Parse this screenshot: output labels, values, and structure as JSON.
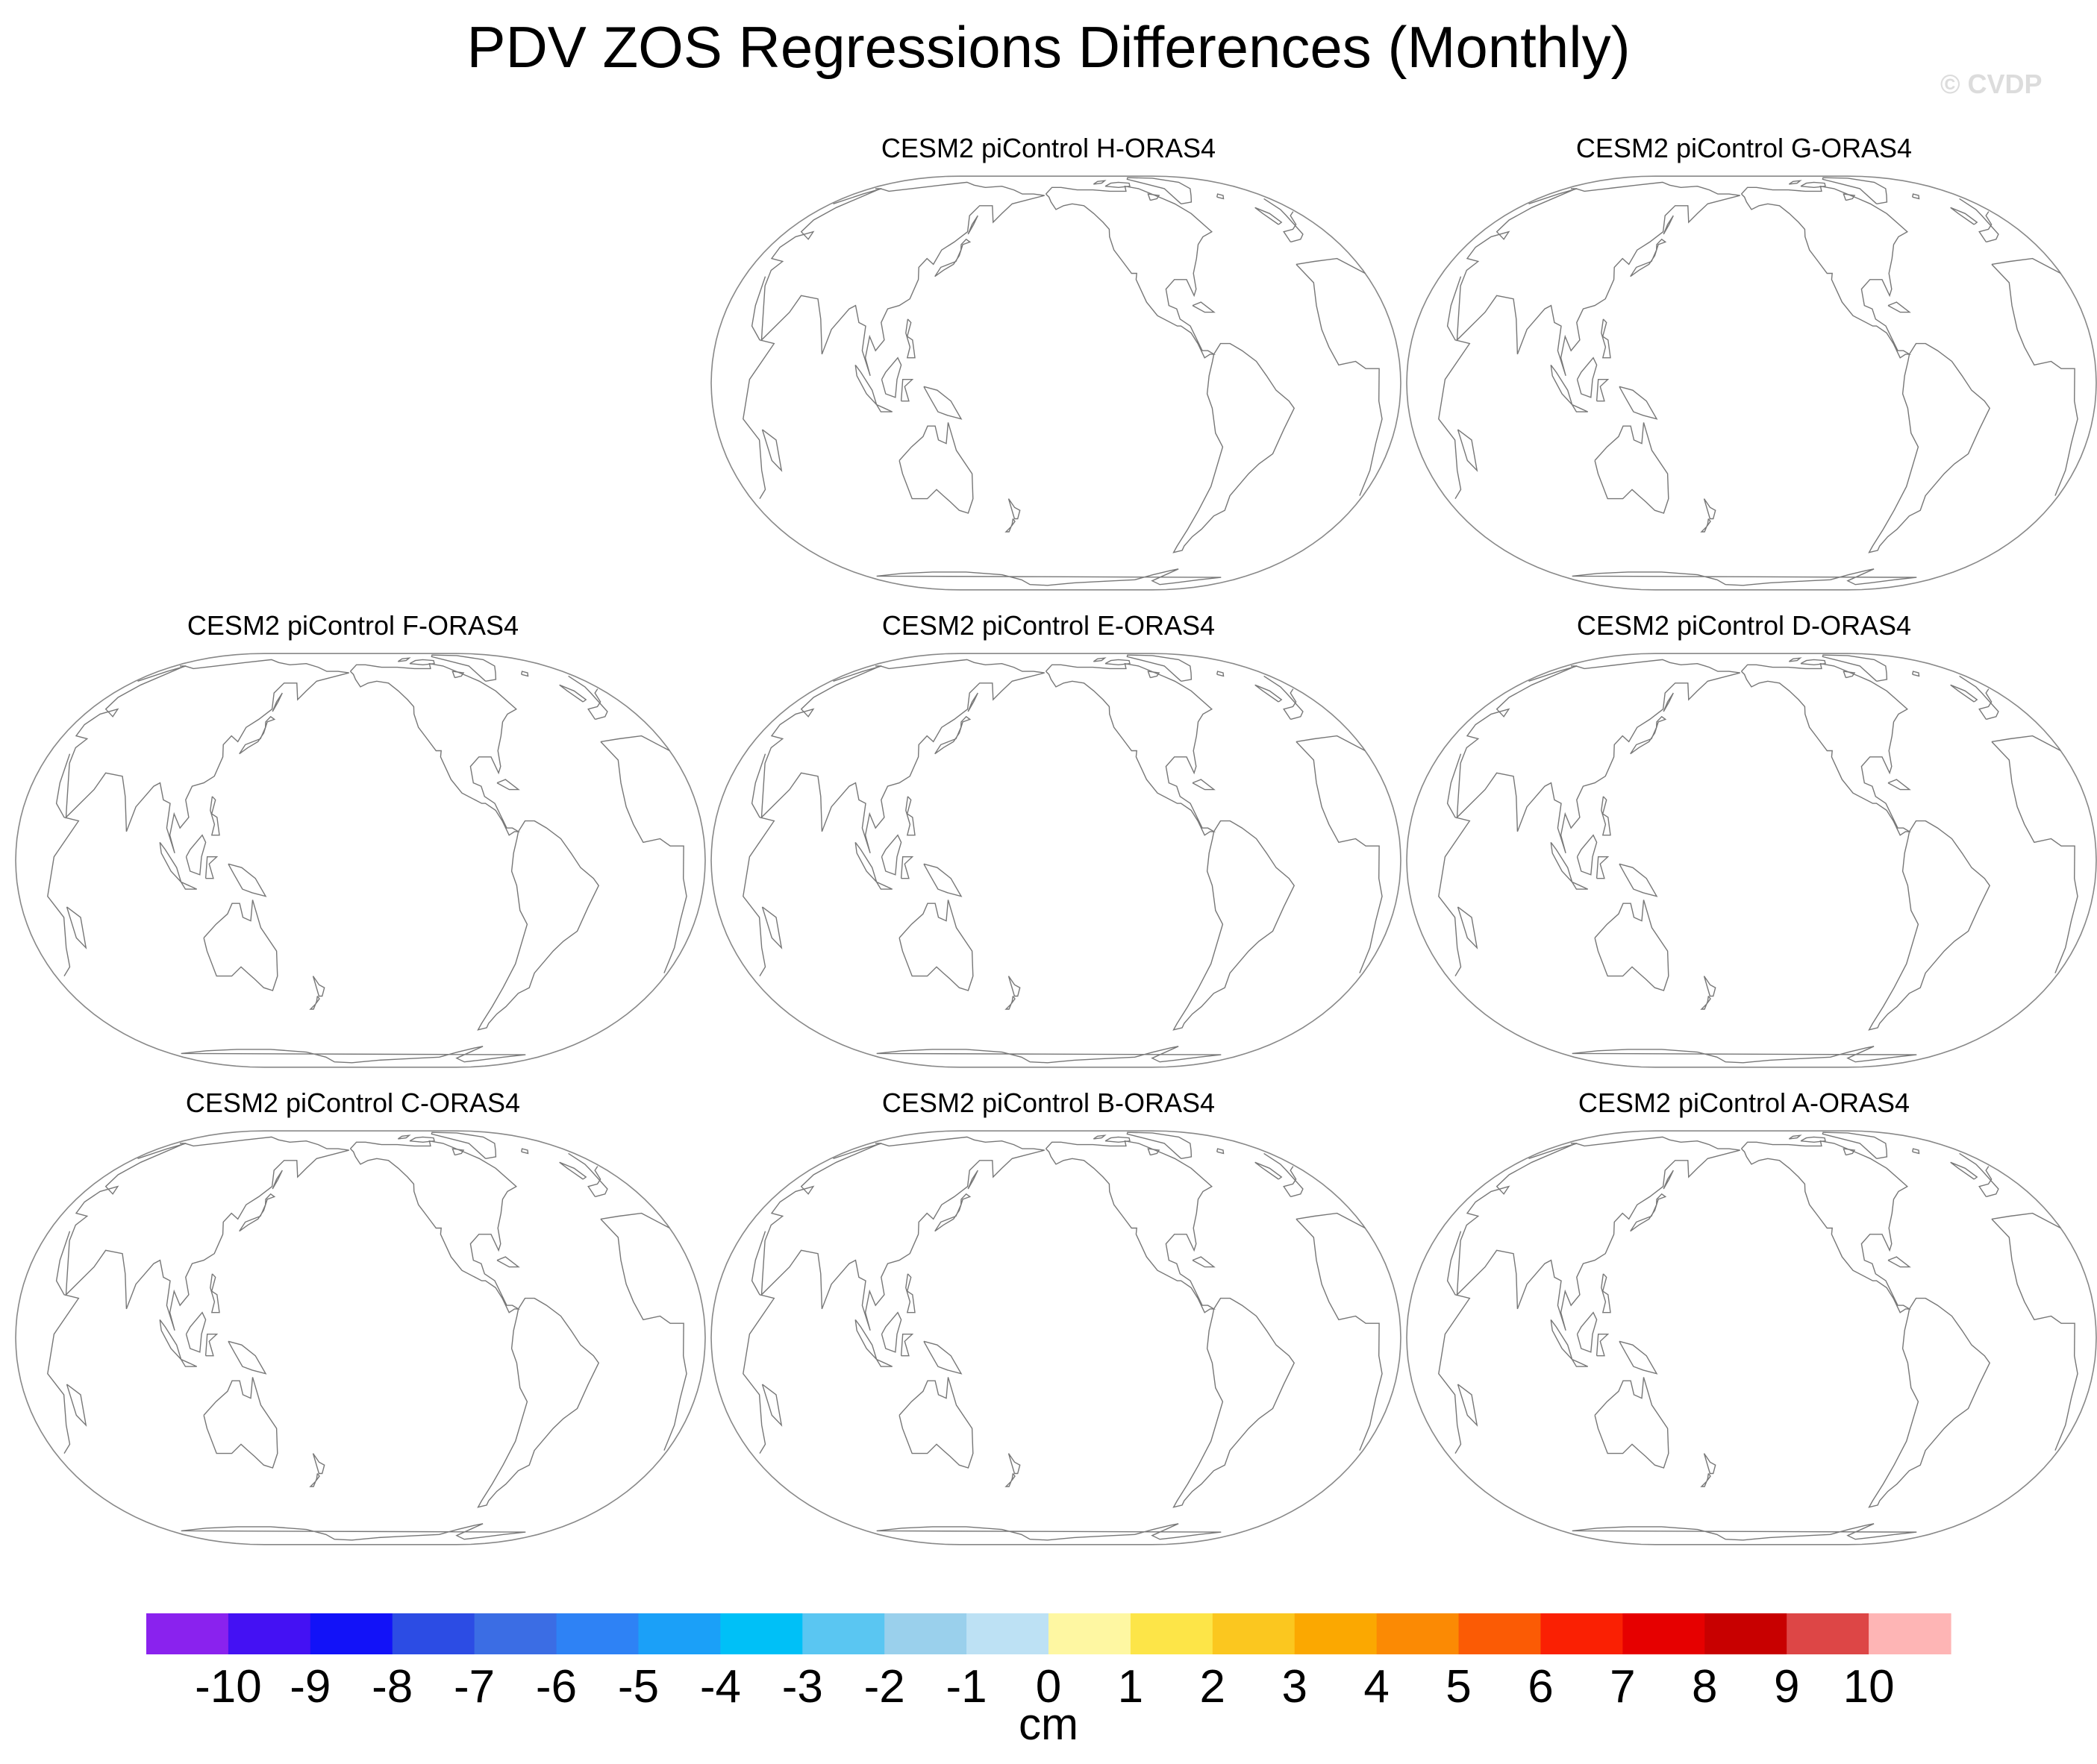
{
  "title": "PDV ZOS Regressions Differences (Monthly)",
  "watermark": "© CVDP",
  "panels": [
    {
      "label": "CESM2 piControl H-ORAS4",
      "values": []
    },
    {
      "label": "CESM2 piControl G-ORAS4",
      "values": []
    },
    {
      "label": "CESM2 piControl F-ORAS4",
      "values": []
    },
    {
      "label": "CESM2 piControl E-ORAS4",
      "values": []
    },
    {
      "label": "CESM2 piControl D-ORAS4",
      "values": []
    },
    {
      "label": "CESM2 piControl C-ORAS4",
      "values": []
    },
    {
      "label": "CESM2 piControl B-ORAS4",
      "values": []
    },
    {
      "label": "CESM2 piControl A-ORAS4",
      "values": []
    }
  ],
  "colorbar": {
    "unit": "cm",
    "tick_labels": [
      "-10",
      "-9",
      "-8",
      "-7",
      "-6",
      "-5",
      "-4",
      "-3",
      "-2",
      "-1",
      "0",
      "1",
      "2",
      "3",
      "4",
      "5",
      "6",
      "7",
      "8",
      "9",
      "10"
    ],
    "colors": [
      "#8a22ee",
      "#4411f3",
      "#1212f8",
      "#2c4ce4",
      "#3b6de4",
      "#2e82f5",
      "#1ba0f8",
      "#00c0f7",
      "#5ac6f2",
      "#9ad0ec",
      "#bde1f4",
      "#fef7a2",
      "#fde548",
      "#fbc71f",
      "#fba801",
      "#fb8a04",
      "#fb5b05",
      "#fa2003",
      "#e60000",
      "#c80000",
      "#dd4646",
      "#feb5b5"
    ]
  }
}
